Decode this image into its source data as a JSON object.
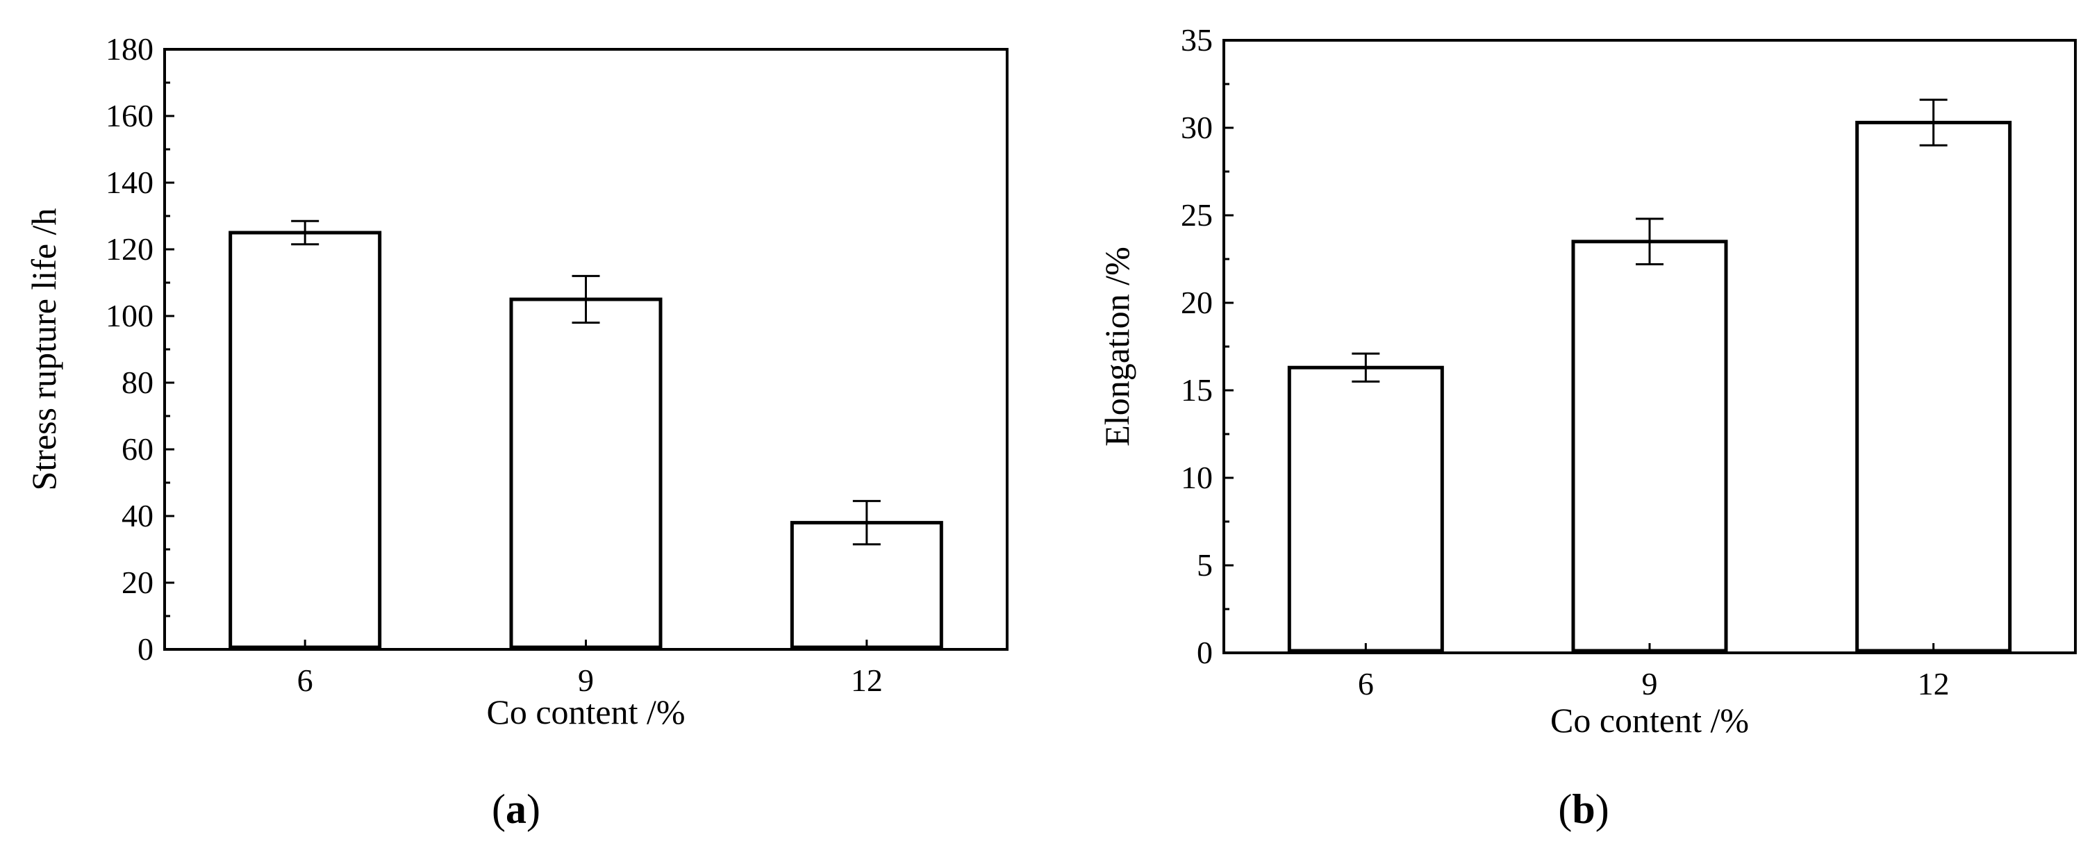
{
  "chart_data": [
    {
      "type": "bar",
      "panel_label": "a",
      "categories": [
        "6",
        "9",
        "12"
      ],
      "values": [
        125,
        105,
        38
      ],
      "errors": [
        3.5,
        7,
        6.5
      ],
      "xlabel": "Co content /%",
      "ylabel": "Stress rupture life /h",
      "ylim": [
        0,
        180
      ],
      "yticks": [
        0,
        20,
        40,
        60,
        80,
        100,
        120,
        140,
        160,
        180
      ],
      "bar_fill": "#ffffff",
      "bar_stroke": "#000000",
      "grid": false
    },
    {
      "type": "bar",
      "panel_label": "b",
      "categories": [
        "6",
        "9",
        "12"
      ],
      "values": [
        16.3,
        23.5,
        30.3
      ],
      "errors": [
        0.8,
        1.3,
        1.3
      ],
      "xlabel": "Co content /%",
      "ylabel": "Elongation /%",
      "ylim": [
        0,
        35
      ],
      "yticks": [
        0,
        5,
        10,
        15,
        20,
        25,
        30,
        35
      ],
      "bar_fill": "#ffffff",
      "bar_stroke": "#000000",
      "grid": false
    }
  ]
}
